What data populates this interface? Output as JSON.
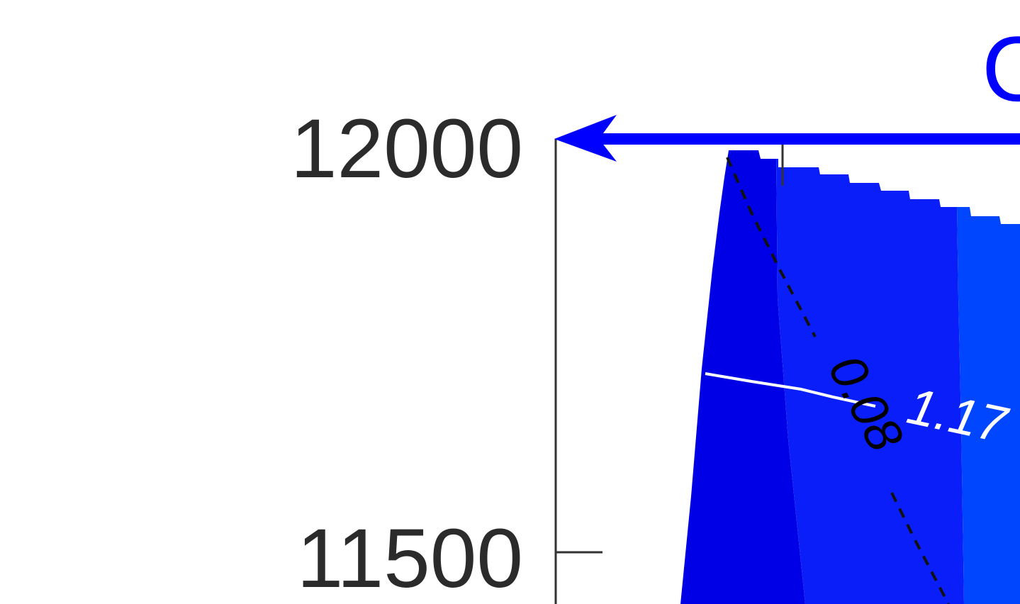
{
  "chart_data": {
    "type": "contour",
    "y_axis": {
      "ticks": [
        12000,
        11500
      ],
      "tick_labels": [
        "12000",
        "11500"
      ]
    },
    "contour_labels": [
      {
        "text": "0.08",
        "line_style": "dashed",
        "color": "#000000"
      },
      {
        "text": "1.17",
        "line_style": "solid",
        "color": "#ffffff"
      }
    ],
    "partial_title_text": "C",
    "colors": {
      "axis": "#333333",
      "arrow": "#0000ff",
      "band_dark": "#0000e6",
      "band_mid": "#0a1efa",
      "band_mid2": "#0a32fa",
      "band_light": "#0046ff",
      "title": "#0000ff"
    },
    "grid": false
  }
}
